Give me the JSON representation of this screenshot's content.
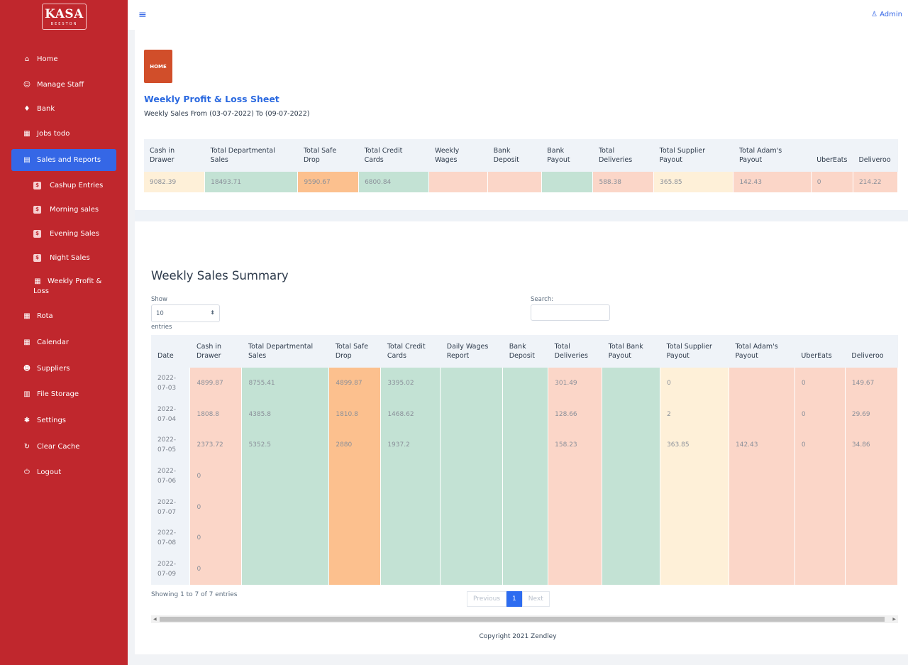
{
  "brand": {
    "name": "KASA",
    "tagline": "BEESTON"
  },
  "sidebar": {
    "items": [
      {
        "label": "Home",
        "icon": "home-icon",
        "glyph": "⌂"
      },
      {
        "label": "Manage Staff",
        "icon": "staff-icon",
        "glyph": "☺"
      },
      {
        "label": "Bank",
        "icon": "piggy-bank-icon",
        "glyph": "♦"
      },
      {
        "label": "Jobs todo",
        "icon": "calendar-list-icon",
        "glyph": "▦"
      },
      {
        "label": "Sales and Reports",
        "icon": "document-icon",
        "glyph": "▤"
      }
    ],
    "subitems": [
      {
        "label": "Cashup Entries",
        "icon": "dollar-icon"
      },
      {
        "label": "Morning sales",
        "icon": "dollar-icon"
      },
      {
        "label": "Evening Sales",
        "icon": "dollar-icon"
      },
      {
        "label": "Night Sales",
        "icon": "dollar-icon"
      },
      {
        "label": "Weekly Profit &",
        "label2": "Loss",
        "icon": "calendar-icon"
      }
    ],
    "bottom_items": [
      {
        "label": "Rota",
        "icon": "calendar-icon",
        "glyph": "▦"
      },
      {
        "label": "Calendar",
        "icon": "calendar-icon",
        "glyph": "▦"
      },
      {
        "label": "Suppliers",
        "icon": "users-icon",
        "glyph": "☻"
      },
      {
        "label": "File Storage",
        "icon": "file-icon",
        "glyph": "▥"
      },
      {
        "label": "Settings",
        "icon": "gear-icon",
        "glyph": "✱"
      },
      {
        "label": "Clear Cache",
        "icon": "refresh-icon",
        "glyph": "↻"
      },
      {
        "label": "Logout",
        "icon": "power-icon",
        "glyph": "⏻"
      }
    ],
    "sub_glyph": "$"
  },
  "header": {
    "menu_glyph": "≡",
    "user_label": "Admin"
  },
  "home_badge": "HOME",
  "pl": {
    "title": "Weekly Profit & Loss Sheet",
    "subtitle": "Weekly Sales From (03-07-2022) To (09-07-2022)",
    "headers": [
      "Cash in Drawer",
      "Total Departmental Sales",
      "Total Safe Drop",
      "Total Credit Cards",
      "Weekly Wages",
      "Bank Deposit",
      "Bank Payout",
      "Total Deliveries",
      "Total Supplier Payout",
      "Total Adam's Payout",
      "UberEats",
      "Deliveroo"
    ],
    "values": [
      "9082.39",
      "18493.71",
      "9590.67",
      "6800.84",
      "",
      "",
      "",
      "588.38",
      "365.85",
      "142.43",
      "0",
      "214.22"
    ]
  },
  "ws": {
    "title": "Weekly Sales Summary",
    "show_label": "Show",
    "show_value": "10",
    "entries_label": "entries",
    "search_label": "Search:",
    "headers": [
      "Date",
      "Cash in Drawer",
      "Total Departmental Sales",
      "Total Safe Drop",
      "Total Credit Cards",
      "Daily Wages Report",
      "Bank Deposit",
      "Total Deliveries",
      "Total Bank Payout",
      "Total Supplier Payout",
      "Total Adam's Payout",
      "UberEats",
      "Deliveroo"
    ],
    "rows": [
      [
        "2022-07-03",
        "4899.87",
        "8755.41",
        "4899.87",
        "3395.02",
        "",
        "",
        "301.49",
        "",
        "0",
        "",
        "0",
        "149.67"
      ],
      [
        "2022-07-04",
        "1808.8",
        "4385.8",
        "1810.8",
        "1468.62",
        "",
        "",
        "128.66",
        "",
        "2",
        "",
        "0",
        "29.69"
      ],
      [
        "2022-07-05",
        "2373.72",
        "5352.5",
        "2880",
        "1937.2",
        "",
        "",
        "158.23",
        "",
        "363.85",
        "142.43",
        "0",
        "34.86"
      ],
      [
        "2022-07-06",
        "0",
        "",
        "",
        "",
        "",
        "",
        "",
        "",
        "",
        "",
        "",
        ""
      ],
      [
        "2022-07-07",
        "0",
        "",
        "",
        "",
        "",
        "",
        "",
        "",
        "",
        "",
        "",
        ""
      ],
      [
        "2022-07-08",
        "0",
        "",
        "",
        "",
        "",
        "",
        "",
        "",
        "",
        "",
        "",
        ""
      ],
      [
        "2022-07-09",
        "0",
        "",
        "",
        "",
        "",
        "",
        "",
        "",
        "",
        "",
        "",
        ""
      ]
    ],
    "info": "Showing 1 to 7 of 7 entries",
    "prev": "Previous",
    "page": "1",
    "next": "Next"
  },
  "footer": {
    "copyright": "Copyright 2021 Zendley"
  }
}
